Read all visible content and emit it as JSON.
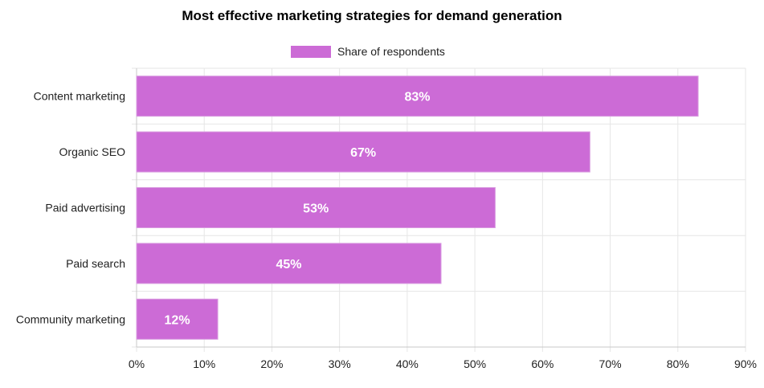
{
  "chart_data": {
    "type": "bar",
    "orientation": "horizontal",
    "title": "Most effective marketing strategies for demand generation",
    "categories": [
      "Content marketing",
      "Organic SEO",
      "Paid advertising",
      "Paid search",
      "Community marketing"
    ],
    "series": [
      {
        "name": "Share of respondents",
        "values": [
          83,
          67,
          53,
          45,
          12
        ],
        "data_labels": [
          "83%",
          "67%",
          "53%",
          "45%",
          "12%"
        ]
      }
    ],
    "xlim": [
      0,
      90
    ],
    "x_ticks": [
      0,
      10,
      20,
      30,
      40,
      50,
      60,
      70,
      80,
      90
    ],
    "x_tick_labels": [
      "0%",
      "10%",
      "20%",
      "30%",
      "40%",
      "50%",
      "60%",
      "70%",
      "80%",
      "90%"
    ],
    "xlabel": "",
    "ylabel": "",
    "grid": true,
    "legend_position": "top-center",
    "colors": {
      "bar_fill": "#cc6bd6",
      "bar_stroke": "#d99be0",
      "grid": "#e6e6e6",
      "axis": "#c8c8c8",
      "text": "#222222",
      "label_text": "#ffffff"
    }
  }
}
